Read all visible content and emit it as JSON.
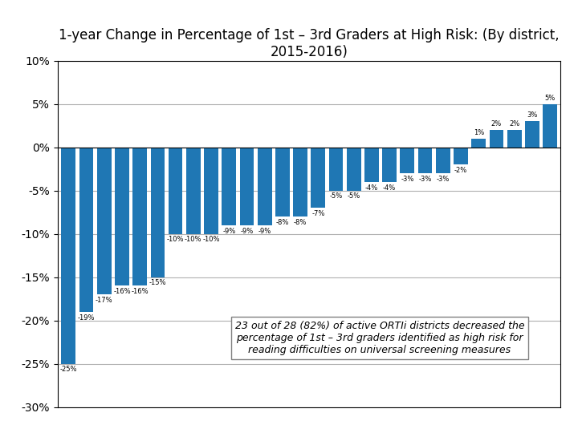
{
  "chart_data": {
    "type": "bar",
    "title": "1-year Change in Percentage of 1st – 3rd Graders at High Risk: (By district, 2015-2016)",
    "categories": [
      null,
      null,
      null,
      null,
      null,
      null,
      null,
      null,
      null,
      null,
      null,
      null,
      null,
      null,
      null,
      null,
      null,
      null,
      null,
      null,
      null,
      null,
      null,
      null,
      null,
      null,
      null,
      null
    ],
    "values": [
      -25,
      -19,
      -17,
      -16,
      -16,
      -15,
      -10,
      -10,
      -10,
      -9,
      -9,
      -9,
      -8,
      -8,
      -7,
      -5,
      -5,
      -4,
      -4,
      -3,
      -3,
      -3,
      -2,
      1,
      2,
      2,
      3,
      5
    ],
    "value_labels": [
      "-25%",
      "-19%",
      "-17%",
      "-16%",
      "-16%",
      "-15%",
      "-10%",
      "-10%",
      "-10%",
      "-9%",
      "-9%",
      "-9%",
      "-8%",
      "-8%",
      "-7%",
      "-5%",
      "-5%",
      "-4%",
      "-4%",
      "-3%",
      "-3%",
      "-3%",
      "-2%",
      "1%",
      "2%",
      "2%",
      "3%",
      "5%"
    ],
    "data_labels": true,
    "ylim": [
      -30,
      10
    ],
    "yticks": [
      {
        "value": -30,
        "label": "-30%"
      },
      {
        "value": -25,
        "label": "-25%"
      },
      {
        "value": -20,
        "label": "-20%"
      },
      {
        "value": -15,
        "label": "-15%"
      },
      {
        "value": -10,
        "label": "-10%"
      },
      {
        "value": -5,
        "label": "-5%"
      },
      {
        "value": 0,
        "label": "0%"
      },
      {
        "value": 5,
        "label": "5%"
      },
      {
        "value": 10,
        "label": "10%"
      }
    ],
    "grid": true,
    "tick_labels": "y",
    "annotation": "23 out of 28 (82%) of active ORTIi districts decreased the\npercentage of 1st – 3rd graders identified as high risk for\nreading difficulties on universal screening measures"
  }
}
